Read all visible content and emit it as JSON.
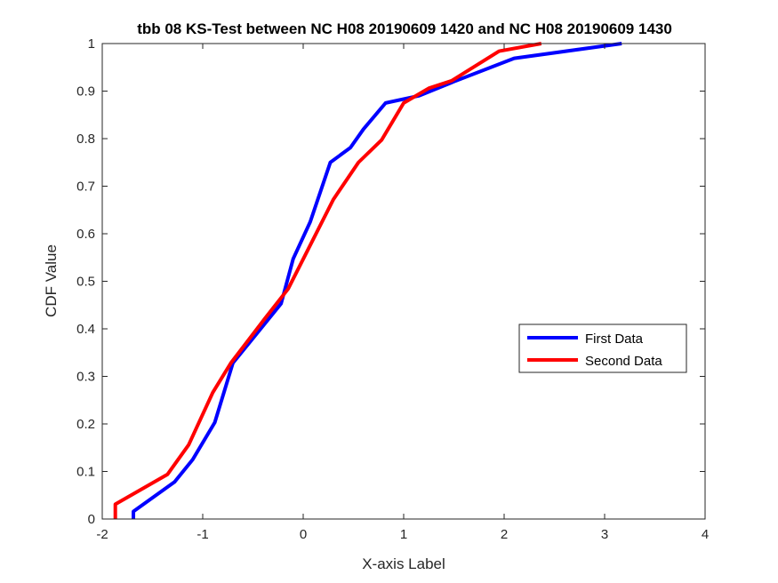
{
  "chart_data": {
    "type": "line",
    "title": "tbb 08 KS-Test between NC H08 20190609 1420 and NC H08 20190609 1430",
    "xlabel": "X-axis Label",
    "ylabel": "CDF Value",
    "xlim": [
      -2,
      4
    ],
    "ylim": [
      0,
      1
    ],
    "xticks": [
      "-2",
      "-1",
      "0",
      "1",
      "2",
      "3",
      "4"
    ],
    "yticks": [
      "0",
      "0.1",
      "0.2",
      "0.3",
      "0.4",
      "0.5",
      "0.6",
      "0.7",
      "0.8",
      "0.9",
      "1"
    ],
    "grid": false,
    "legend_position": "right-middle",
    "series": [
      {
        "name": "First Data",
        "color": "#0000ff",
        "points": [
          [
            -1.69,
            0
          ],
          [
            -1.69,
            0.016
          ],
          [
            -1.28,
            0.078
          ],
          [
            -1.1,
            0.125
          ],
          [
            -0.88,
            0.203
          ],
          [
            -0.7,
            0.328
          ],
          [
            -0.22,
            0.453
          ],
          [
            -0.1,
            0.547
          ],
          [
            0.07,
            0.625
          ],
          [
            0.27,
            0.75
          ],
          [
            0.47,
            0.781
          ],
          [
            0.6,
            0.82
          ],
          [
            0.82,
            0.875
          ],
          [
            1.15,
            0.89
          ],
          [
            1.5,
            0.92
          ],
          [
            2.1,
            0.969
          ],
          [
            3.17,
            1.0
          ]
        ]
      },
      {
        "name": "Second Data",
        "color": "#ff0000",
        "points": [
          [
            -1.87,
            0
          ],
          [
            -1.87,
            0.031
          ],
          [
            -1.35,
            0.094
          ],
          [
            -1.14,
            0.156
          ],
          [
            -0.9,
            0.266
          ],
          [
            -0.72,
            0.328
          ],
          [
            -0.38,
            0.422
          ],
          [
            -0.15,
            0.484
          ],
          [
            0.3,
            0.672
          ],
          [
            0.55,
            0.75
          ],
          [
            0.78,
            0.797
          ],
          [
            1.0,
            0.875
          ],
          [
            1.25,
            0.906
          ],
          [
            1.48,
            0.922
          ],
          [
            1.95,
            0.984
          ],
          [
            2.37,
            1.0
          ]
        ]
      }
    ]
  }
}
